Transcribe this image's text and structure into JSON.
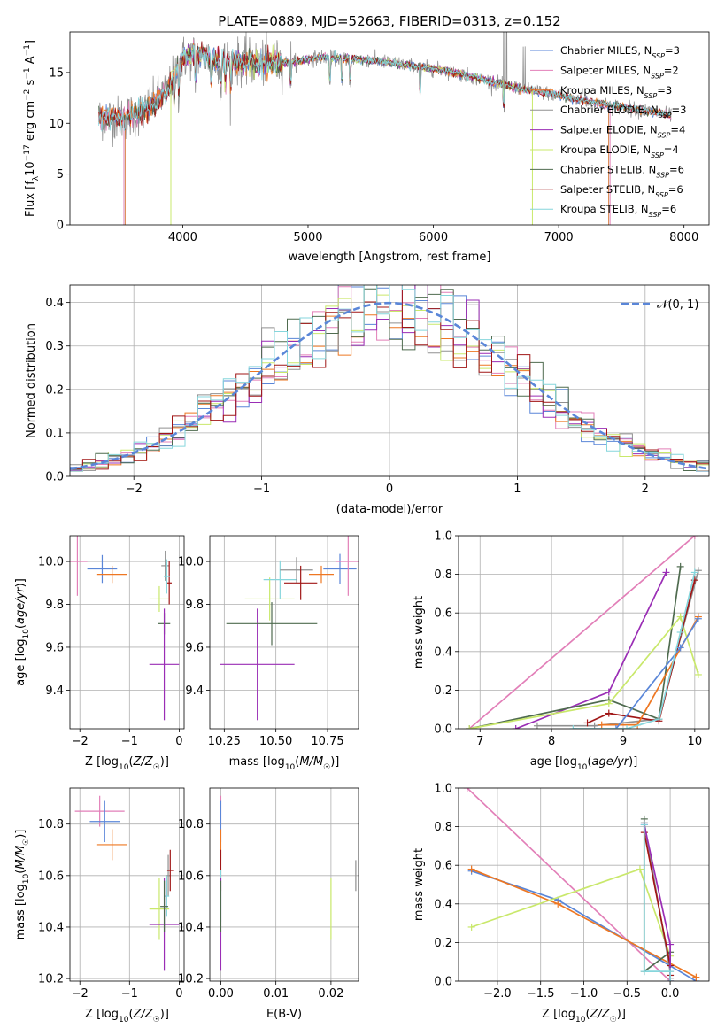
{
  "title": "PLATE=0889, MJD=52663, FIBERID=0313, z=0.152",
  "colors": {
    "Chabrier MILES": "#5a86d8",
    "Salpeter MILES": "#e27fb8",
    "Kroupa MILES": "#ee7722",
    "Chabrier ELODIE": "#909090",
    "Salpeter ELODIE": "#9a2db5",
    "Kroupa ELODIE": "#c9e86b",
    "Chabrier STELIB": "#4f6b4f",
    "Salpeter STELIB": "#a01616",
    "Kroupa STELIB": "#86d6dc"
  },
  "chart_data": [
    {
      "id": "spectrum",
      "type": "line",
      "title": "PLATE=0889, MJD=52663, FIBERID=0313, z=0.152",
      "xlabel": "wavelength [Angstrom, rest frame]",
      "ylabel": "Flux [f_λ 10^-17 erg cm^-2 s^-1 A^-1]",
      "xlim": [
        3100,
        8200
      ],
      "ylim": [
        0,
        19
      ],
      "xticks": [
        "4000",
        "5000",
        "6000",
        "7000",
        "8000"
      ],
      "yticks": [
        "0",
        "5",
        "10",
        "15"
      ],
      "legend_position": "right",
      "legend": [
        {
          "label": "Chabrier MILES, N",
          "sub": "SSP",
          "tail": "=3",
          "model": "Chabrier MILES"
        },
        {
          "label": "Salpeter MILES, N",
          "sub": "SSP",
          "tail": "=2",
          "model": "Salpeter MILES"
        },
        {
          "label": "Kroupa MILES, N",
          "sub": "SSP",
          "tail": "=3",
          "model": "Kroupa MILES"
        },
        {
          "label": "Chabrier ELODIE, N",
          "sub": "SSP",
          "tail": "=3",
          "model": "Chabrier ELODIE"
        },
        {
          "label": "Salpeter ELODIE, N",
          "sub": "SSP",
          "tail": "=4",
          "model": "Salpeter ELODIE"
        },
        {
          "label": "Kroupa ELODIE, N",
          "sub": "SSP",
          "tail": "=4",
          "model": "Kroupa ELODIE"
        },
        {
          "label": "Chabrier STELIB, N",
          "sub": "SSP",
          "tail": "=6",
          "model": "Chabrier STELIB"
        },
        {
          "label": "Salpeter STELIB, N",
          "sub": "SSP",
          "tail": "=6",
          "model": "Salpeter STELIB"
        },
        {
          "label": "Kroupa STELIB, N",
          "sub": "SSP",
          "tail": "=6",
          "model": "Kroupa STELIB"
        }
      ],
      "continuum": {
        "x": [
          3330,
          3400,
          3500,
          3600,
          3700,
          3800,
          3900,
          3950,
          4000,
          4100,
          4300,
          4500,
          4700,
          4900,
          5100,
          5300,
          5500,
          5700,
          5900,
          6100,
          6300,
          6500,
          6700,
          6900,
          7100,
          7300,
          7500,
          7700,
          7900
        ],
        "y": [
          10.5,
          10.6,
          10.5,
          10.8,
          11.2,
          12.3,
          13.6,
          15.2,
          16.4,
          16.8,
          16.2,
          16.0,
          15.9,
          16.1,
          16.5,
          16.4,
          16.2,
          15.9,
          15.5,
          15.2,
          14.6,
          14.0,
          13.4,
          13.0,
          12.5,
          12.0,
          11.6,
          11.2,
          10.8
        ]
      },
      "cutoffs": {
        "Salpeter MILES": [
          3530,
          7410
        ],
        "Chabrier MILES": [
          3540,
          7400
        ],
        "Kroupa MILES": [
          3540,
          7400
        ],
        "Kroupa ELODIE": [
          3905,
          6790
        ]
      },
      "emission_spikes": [
        4862,
        6562,
        6585,
        6717,
        6731
      ]
    },
    {
      "id": "residuals",
      "type": "step-histogram",
      "xlabel": "(data-model)/error",
      "ylabel": "Normed distribution",
      "xlim": [
        -2.5,
        2.5
      ],
      "ylim": [
        0,
        0.44
      ],
      "xticks": [
        "−2",
        "−1",
        "0",
        "1",
        "2"
      ],
      "yticks": [
        "0.0",
        "0.1",
        "0.2",
        "0.3",
        "0.4"
      ],
      "reference": {
        "label": "𝒩(0, 1)",
        "mu": 0,
        "sigma": 1
      },
      "bins": 50,
      "legend_position": "top-right"
    },
    {
      "id": "age-vs-Z",
      "type": "scatter-errorbar",
      "xlabel": "Z [log₁₀(Z/Z☉)]",
      "ylabel": "age [log₁₀(age/yr)]",
      "xlim": [
        -2.2,
        0.1
      ],
      "ylim": [
        9.22,
        10.12
      ],
      "xticks": [
        "−2",
        "−1",
        "0"
      ],
      "yticks": [
        "9.4",
        "9.6",
        "9.8",
        "10.0"
      ],
      "points": [
        {
          "model": "Salpeter MILES",
          "x": -2.05,
          "xerr": 0.2,
          "y": 10.0,
          "yerr": 0.16
        },
        {
          "model": "Chabrier MILES",
          "x": -1.55,
          "xerr": 0.3,
          "y": 9.965,
          "yerr": 0.065
        },
        {
          "model": "Kroupa MILES",
          "x": -1.35,
          "xerr": 0.3,
          "y": 9.94,
          "yerr": 0.04
        },
        {
          "model": "Chabrier ELODIE",
          "x": -0.28,
          "xerr": 0.08,
          "y": 9.98,
          "yerr": 0.07
        },
        {
          "model": "Kroupa ELODIE",
          "x": -0.4,
          "xerr": 0.2,
          "y": 9.825,
          "yerr": 0.06
        },
        {
          "model": "Chabrier STELIB",
          "x": -0.3,
          "xerr": 0.12,
          "y": 9.71,
          "yerr": 0.05
        },
        {
          "model": "Salpeter ELODIE",
          "x": -0.3,
          "xerr": 0.3,
          "y": 9.52,
          "yerr": 0.26
        },
        {
          "model": "Salpeter STELIB",
          "x": -0.2,
          "xerr": 0.05,
          "y": 9.9,
          "yerr": 0.1
        },
        {
          "model": "Kroupa STELIB",
          "x": -0.25,
          "xerr": 0.06,
          "y": 9.93,
          "yerr": 0.08
        }
      ]
    },
    {
      "id": "age-vs-mass",
      "type": "scatter-errorbar",
      "xlabel": "mass [log₁₀(M/M☉)]",
      "ylabel": "",
      "xlim": [
        10.18,
        10.9
      ],
      "ylim": [
        9.22,
        10.12
      ],
      "xticks": [
        "10.25",
        "10.50",
        "10.75"
      ],
      "yticks": [
        "9.4",
        "9.6",
        "9.8",
        "10.0"
      ],
      "points": [
        {
          "model": "Salpeter ELODIE",
          "x": 10.41,
          "xerr": 0.18,
          "y": 9.52,
          "yerr": 0.26
        },
        {
          "model": "Chabrier STELIB",
          "x": 10.48,
          "xerr": 0.22,
          "y": 9.71,
          "yerr": 0.1
        },
        {
          "model": "Kroupa ELODIE",
          "x": 10.47,
          "xerr": 0.12,
          "y": 9.825,
          "yerr": 0.1
        },
        {
          "model": "Kroupa STELIB",
          "x": 10.52,
          "xerr": 0.08,
          "y": 9.915,
          "yerr": 0.09
        },
        {
          "model": "Chabrier ELODIE",
          "x": 10.6,
          "xerr": 0.08,
          "y": 9.96,
          "yerr": 0.06
        },
        {
          "model": "Salpeter STELIB",
          "x": 10.62,
          "xerr": 0.08,
          "y": 9.9,
          "yerr": 0.08
        },
        {
          "model": "Kroupa MILES",
          "x": 10.72,
          "xerr": 0.06,
          "y": 9.94,
          "yerr": 0.04
        },
        {
          "model": "Chabrier MILES",
          "x": 10.81,
          "xerr": 0.08,
          "y": 9.965,
          "yerr": 0.07
        },
        {
          "model": "Salpeter MILES",
          "x": 10.85,
          "xerr": 0.06,
          "y": 10.0,
          "yerr": 0.16
        }
      ]
    },
    {
      "id": "weight-vs-age",
      "type": "line",
      "xlabel": "age [log₁₀(age/yr)]",
      "ylabel": "mass weight",
      "xlim": [
        6.7,
        10.2
      ],
      "ylim": [
        0,
        1
      ],
      "xticks": [
        "7",
        "8",
        "9",
        "10"
      ],
      "yticks": [
        "0.0",
        "0.2",
        "0.4",
        "0.6",
        "0.8",
        "1.0"
      ],
      "series": [
        {
          "model": "Salpeter MILES",
          "x": [
            6.85,
            10.0
          ],
          "y": [
            0.0,
            1.0
          ]
        },
        {
          "model": "Salpeter ELODIE",
          "x": [
            7.5,
            8.8,
            9.6
          ],
          "y": [
            0.0,
            0.19,
            0.81
          ]
        },
        {
          "model": "Chabrier STELIB",
          "x": [
            6.85,
            8.8,
            9.5,
            9.8
          ],
          "y": [
            0.0,
            0.15,
            0.05,
            0.84
          ]
        },
        {
          "model": "Kroupa ELODIE",
          "x": [
            6.85,
            8.8,
            9.8,
            10.05
          ],
          "y": [
            0.0,
            0.13,
            0.58,
            0.28
          ]
        },
        {
          "model": "Chabrier ELODIE",
          "x": [
            7.8,
            8.6,
            9.5,
            10.05
          ],
          "y": [
            0.015,
            0.015,
            0.05,
            0.82
          ]
        },
        {
          "model": "Salpeter STELIB",
          "x": [
            8.5,
            8.8,
            9.5,
            10.0
          ],
          "y": [
            0.03,
            0.08,
            0.04,
            0.77
          ]
        },
        {
          "model": "Kroupa MILES",
          "x": [
            8.7,
            9.2,
            10.05
          ],
          "y": [
            0.02,
            0.02,
            0.58
          ]
        },
        {
          "model": "Chabrier MILES",
          "x": [
            8.9,
            9.8,
            10.05
          ],
          "y": [
            0.0,
            0.42,
            0.57
          ]
        },
        {
          "model": "Kroupa STELIB",
          "x": [
            8.3,
            9.05,
            9.5,
            9.8,
            10.0
          ],
          "y": [
            0.0,
            0.0,
            0.05,
            0.5,
            0.81
          ]
        }
      ]
    },
    {
      "id": "mass-vs-Z",
      "type": "scatter-errorbar",
      "xlabel": "Z [log₁₀(Z/Z☉)]",
      "ylabel": "mass [log₁₀(M/M☉)]",
      "xlim": [
        -2.2,
        0.1
      ],
      "ylim": [
        10.19,
        10.94
      ],
      "xticks": [
        "−2",
        "−1",
        "0"
      ],
      "yticks": [
        "10.2",
        "10.4",
        "10.6",
        "10.8"
      ],
      "points": [
        {
          "model": "Salpeter MILES",
          "x": -1.6,
          "xerr": 0.5,
          "y": 10.85,
          "yerr": 0.06
        },
        {
          "model": "Chabrier MILES",
          "x": -1.5,
          "xerr": 0.3,
          "y": 10.81,
          "yerr": 0.08
        },
        {
          "model": "Kroupa MILES",
          "x": -1.35,
          "xerr": 0.3,
          "y": 10.72,
          "yerr": 0.06
        },
        {
          "model": "Chabrier ELODIE",
          "x": -0.22,
          "xerr": 0.05,
          "y": 10.6,
          "yerr": 0.08
        },
        {
          "model": "Salpeter STELIB",
          "x": -0.18,
          "xerr": 0.06,
          "y": 10.62,
          "yerr": 0.08
        },
        {
          "model": "Kroupa STELIB",
          "x": -0.25,
          "xerr": 0.05,
          "y": 10.52,
          "yerr": 0.08
        },
        {
          "model": "Kroupa ELODIE",
          "x": -0.4,
          "xerr": 0.2,
          "y": 10.47,
          "yerr": 0.12
        },
        {
          "model": "Salpeter ELODIE",
          "x": -0.3,
          "xerr": 0.3,
          "y": 10.41,
          "yerr": 0.18
        },
        {
          "model": "Chabrier STELIB",
          "x": -0.3,
          "xerr": 0.08,
          "y": 10.48,
          "yerr": 0.1
        }
      ]
    },
    {
      "id": "mass-vs-EBV",
      "type": "scatter-errorbar",
      "xlabel": "E(B-V)",
      "ylabel": "",
      "xlim": [
        -0.002,
        0.025
      ],
      "ylim": [
        10.19,
        10.94
      ],
      "xticks": [
        "0.00",
        "0.01",
        "0.02"
      ],
      "yticks": [
        "10.2",
        "10.4",
        "10.6",
        "10.8"
      ],
      "points": [
        {
          "model": "Salpeter MILES",
          "x": 0.0,
          "xerr": 0,
          "y": 10.85,
          "yerr": 0.06
        },
        {
          "model": "Chabrier MILES",
          "x": 0.0,
          "xerr": 0,
          "y": 10.81,
          "yerr": 0.08
        },
        {
          "model": "Kroupa MILES",
          "x": 0.0,
          "xerr": 0,
          "y": 10.72,
          "yerr": 0.06
        },
        {
          "model": "Salpeter STELIB",
          "x": 0.0,
          "xerr": 0,
          "y": 10.62,
          "yerr": 0.08
        },
        {
          "model": "Kroupa STELIB",
          "x": 0.0,
          "xerr": 0,
          "y": 10.52,
          "yerr": 0.1
        },
        {
          "model": "Salpeter ELODIE",
          "x": 0.0,
          "xerr": 0,
          "y": 10.41,
          "yerr": 0.18
        },
        {
          "model": "Chabrier STELIB",
          "x": 0.0,
          "xerr": 0,
          "y": 10.48,
          "yerr": 0.1
        },
        {
          "model": "Kroupa ELODIE",
          "x": 0.02,
          "xerr": 0,
          "y": 10.47,
          "yerr": 0.12
        },
        {
          "model": "Chabrier ELODIE",
          "x": 0.0245,
          "xerr": 0,
          "y": 10.6,
          "yerr": 0.06
        }
      ]
    },
    {
      "id": "weight-vs-Z",
      "type": "line",
      "xlabel": "Z [log₁₀(Z/Z☉)]",
      "ylabel": "mass weight",
      "xlim": [
        -2.45,
        0.45
      ],
      "ylim": [
        0,
        1
      ],
      "xticks": [
        "−2.0",
        "−1.5",
        "−1.0",
        "−0.5",
        "0.0"
      ],
      "yticks": [
        "0.0",
        "0.2",
        "0.4",
        "0.6",
        "0.8",
        "1.0"
      ],
      "series": [
        {
          "model": "Salpeter MILES",
          "x": [
            -2.35,
            0.0
          ],
          "y": [
            1.0,
            0.0
          ]
        },
        {
          "model": "Chabrier MILES",
          "x": [
            -2.3,
            -1.3,
            0.3
          ],
          "y": [
            0.57,
            0.42,
            0.0
          ]
        },
        {
          "model": "Kroupa MILES",
          "x": [
            -2.3,
            -1.3,
            0.3
          ],
          "y": [
            0.58,
            0.4,
            0.02
          ]
        },
        {
          "model": "Kroupa ELODIE",
          "x": [
            -2.3,
            -0.35,
            0.0
          ],
          "y": [
            0.28,
            0.58,
            0.13
          ]
        },
        {
          "model": "Chabrier STELIB",
          "x": [
            -0.3,
            -0.3,
            0.0,
            0.0
          ],
          "y": [
            0.84,
            0.05,
            0.15,
            0.0
          ]
        },
        {
          "model": "Chabrier ELODIE",
          "x": [
            -0.3,
            0.0,
            0.0
          ],
          "y": [
            0.82,
            0.05,
            0.015
          ]
        },
        {
          "model": "Salpeter STELIB",
          "x": [
            -0.3,
            0.0,
            0.0
          ],
          "y": [
            0.77,
            0.08,
            0.03
          ]
        },
        {
          "model": "Salpeter ELODIE",
          "x": [
            -0.3,
            0.0,
            0.0
          ],
          "y": [
            0.81,
            0.19,
            0.0
          ]
        },
        {
          "model": "Kroupa STELIB",
          "x": [
            -0.3,
            -0.3,
            0.0,
            0.0
          ],
          "y": [
            0.81,
            0.05,
            0.05,
            0.0
          ]
        }
      ]
    }
  ]
}
